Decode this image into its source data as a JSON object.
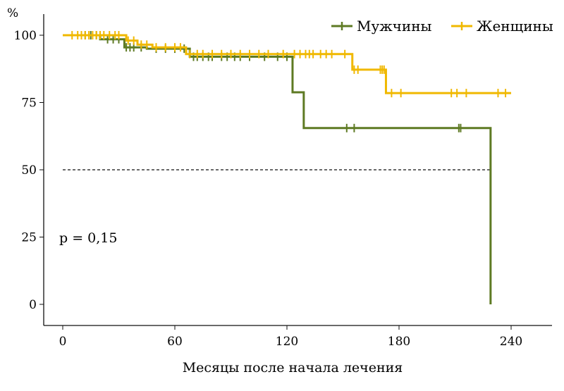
{
  "chart_data": {
    "type": "line",
    "subtype": "kaplan-meier",
    "title": "",
    "xlabel": "Месяцы после начала лечения",
    "ylabel": "%",
    "xlim": [
      0,
      240
    ],
    "ylim": [
      0,
      100
    ],
    "xticks": [
      "0",
      "60",
      "120",
      "180",
      "240"
    ],
    "yticks": [
      "0",
      "25",
      "50",
      "75",
      "100"
    ],
    "annotation": "p = 0,15",
    "median_reference_line": 50,
    "legend_position": "top-right",
    "series": [
      {
        "name": "Мужчины",
        "color": "#5e7a23",
        "steps": [
          [
            0,
            100
          ],
          [
            20,
            98.5
          ],
          [
            33,
            95.5
          ],
          [
            45,
            95
          ],
          [
            68,
            92
          ],
          [
            123,
            78.8
          ],
          [
            129,
            65.5
          ],
          [
            229,
            0
          ]
        ],
        "end": 229,
        "censored": [
          10,
          12,
          15,
          18,
          24,
          27,
          30,
          34,
          36,
          38,
          42,
          50,
          55,
          60,
          65,
          70,
          72,
          75,
          78,
          80,
          85,
          88,
          92,
          95,
          100,
          108,
          115,
          120,
          152,
          156,
          212,
          213
        ]
      },
      {
        "name": "Женщины",
        "color": "#f0b800",
        "steps": [
          [
            0,
            100
          ],
          [
            34,
            98
          ],
          [
            40,
            96.5
          ],
          [
            48,
            95.5
          ],
          [
            66,
            93
          ],
          [
            155,
            87.2
          ],
          [
            173,
            78.5
          ]
        ],
        "end": 240,
        "censored": [
          5,
          8,
          10,
          12,
          14,
          16,
          18,
          20,
          22,
          25,
          28,
          30,
          35,
          38,
          42,
          45,
          50,
          55,
          60,
          63,
          68,
          72,
          75,
          80,
          85,
          90,
          95,
          100,
          105,
          110,
          118,
          124,
          127,
          130,
          132,
          134,
          138,
          141,
          144,
          151,
          156,
          158,
          170,
          171,
          172,
          176,
          181,
          208,
          211,
          216,
          233,
          237
        ]
      }
    ]
  }
}
